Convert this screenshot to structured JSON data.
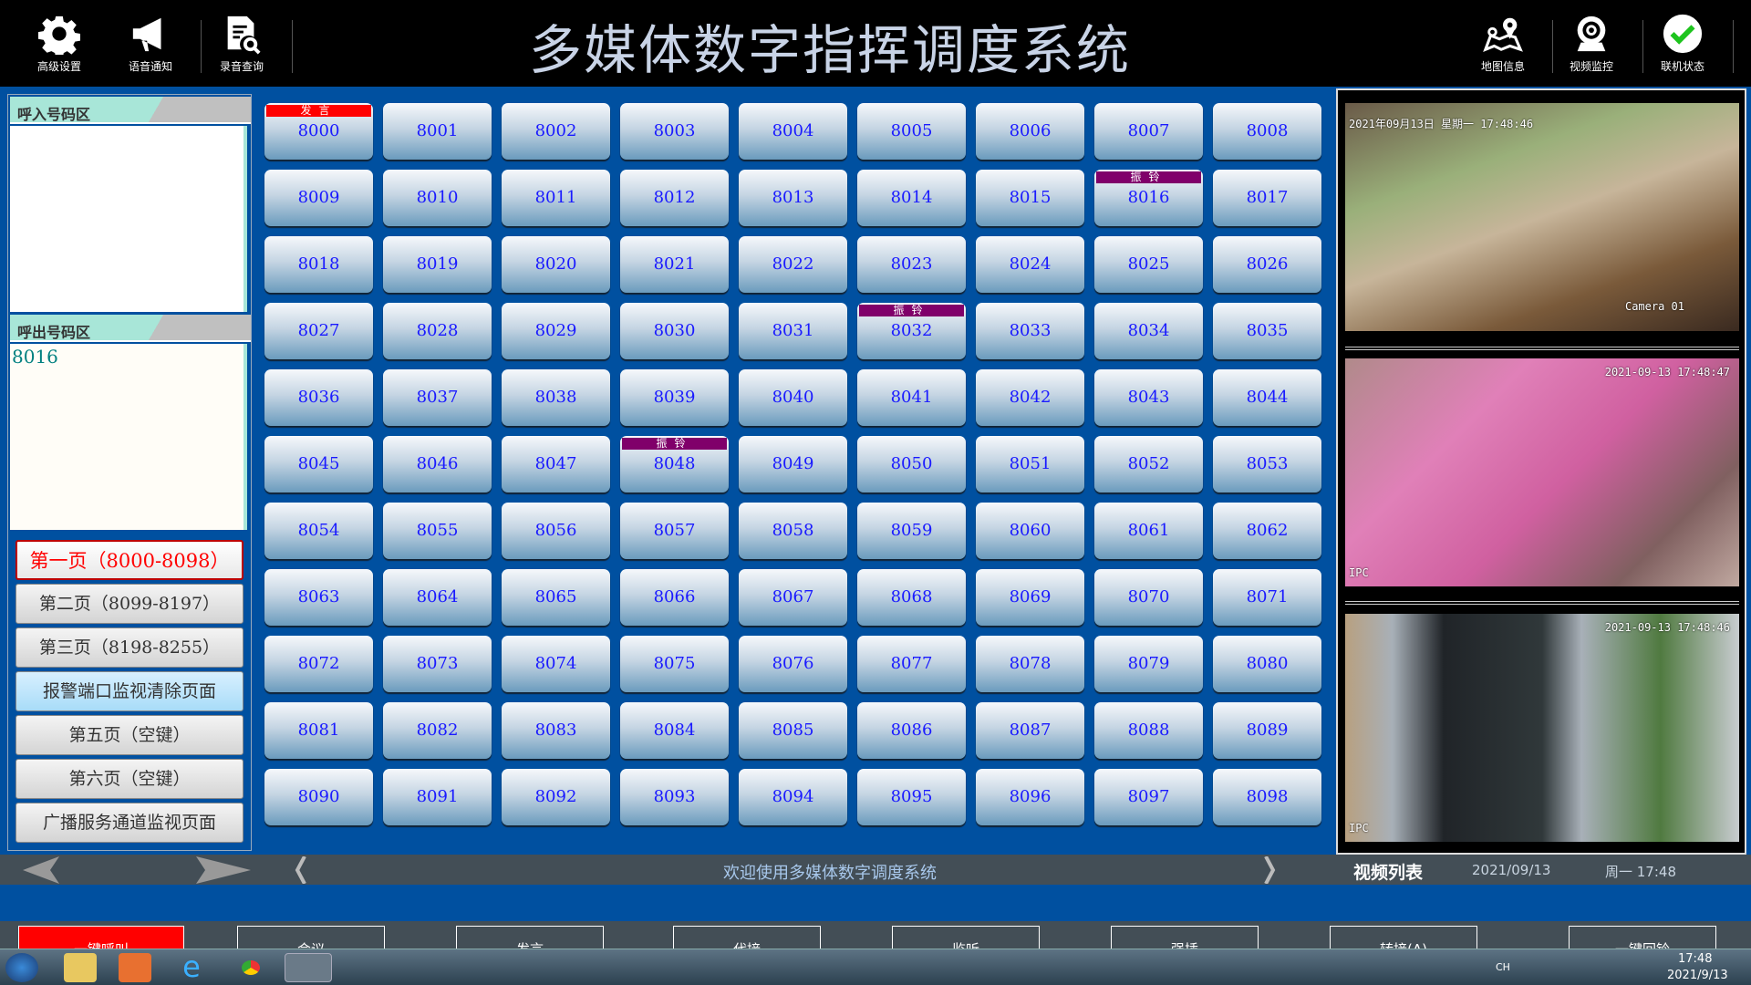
{
  "header": {
    "title": "多媒体数字指挥调度系统",
    "left_tools": [
      {
        "label": "高级设置",
        "icon": "gear-icon"
      },
      {
        "label": "语音通知",
        "icon": "megaphone-icon"
      },
      {
        "label": "录音查询",
        "icon": "record-search-icon"
      }
    ],
    "right_tools": [
      {
        "label": "地图信息",
        "icon": "map-pin-icon"
      },
      {
        "label": "视频监控",
        "icon": "webcam-icon"
      },
      {
        "label": "联机状态",
        "icon": "check-circle-icon"
      }
    ]
  },
  "left": {
    "incoming_label": "呼入号码区",
    "incoming_value": "",
    "outgoing_label": "呼出号码区",
    "outgoing_value": "8016",
    "pages": [
      {
        "label": "第一页（8000-8098）",
        "state": "active"
      },
      {
        "label": "第二页（8099-8197）",
        "state": "normal"
      },
      {
        "label": "第三页（8198-8255）",
        "state": "normal"
      },
      {
        "label": "报警端口监视清除页面",
        "state": "alarm"
      },
      {
        "label": "第五页（空键）",
        "state": "normal"
      },
      {
        "label": "第六页（空键）",
        "state": "normal"
      },
      {
        "label": "广播服务通道监视页面",
        "state": "normal"
      }
    ]
  },
  "extensions": {
    "first": 8000,
    "last": 8098,
    "columns": 9,
    "badges": {
      "8000": {
        "text": "发言",
        "color": "#ff0000"
      },
      "8016": {
        "text": "振铃",
        "color": "#80006a"
      },
      "8032": {
        "text": "振铃",
        "color": "#80006a"
      },
      "8048": {
        "text": "振铃",
        "color": "#80006a"
      }
    }
  },
  "videos": [
    {
      "timestamp": "2021年09月13日 星期一 17:48:46",
      "camera": "Camera 01"
    },
    {
      "timestamp": "2021-09-13 17:48:47",
      "camera": "IPC"
    },
    {
      "timestamp": "2021-09-13 17:48:46",
      "camera": "IPC"
    }
  ],
  "ticker": {
    "message": "欢迎使用多媒体数字调度系统",
    "video_list": "视频列表",
    "date": "2021/09/13",
    "weekday_time": "周一 17:48"
  },
  "actions": [
    "一键呼叫",
    "会议",
    "发言",
    "代接",
    "监听",
    "强插",
    "转接(A)",
    "一键回铃"
  ],
  "taskbar": {
    "ime": "CH",
    "time": "17:48",
    "date": "2021/9/13"
  },
  "colors": {
    "background": "#0050a0",
    "header": "#000000",
    "ticker": "#434e56",
    "ext_text": "#1a1aff",
    "active_page": "#ff0000"
  }
}
